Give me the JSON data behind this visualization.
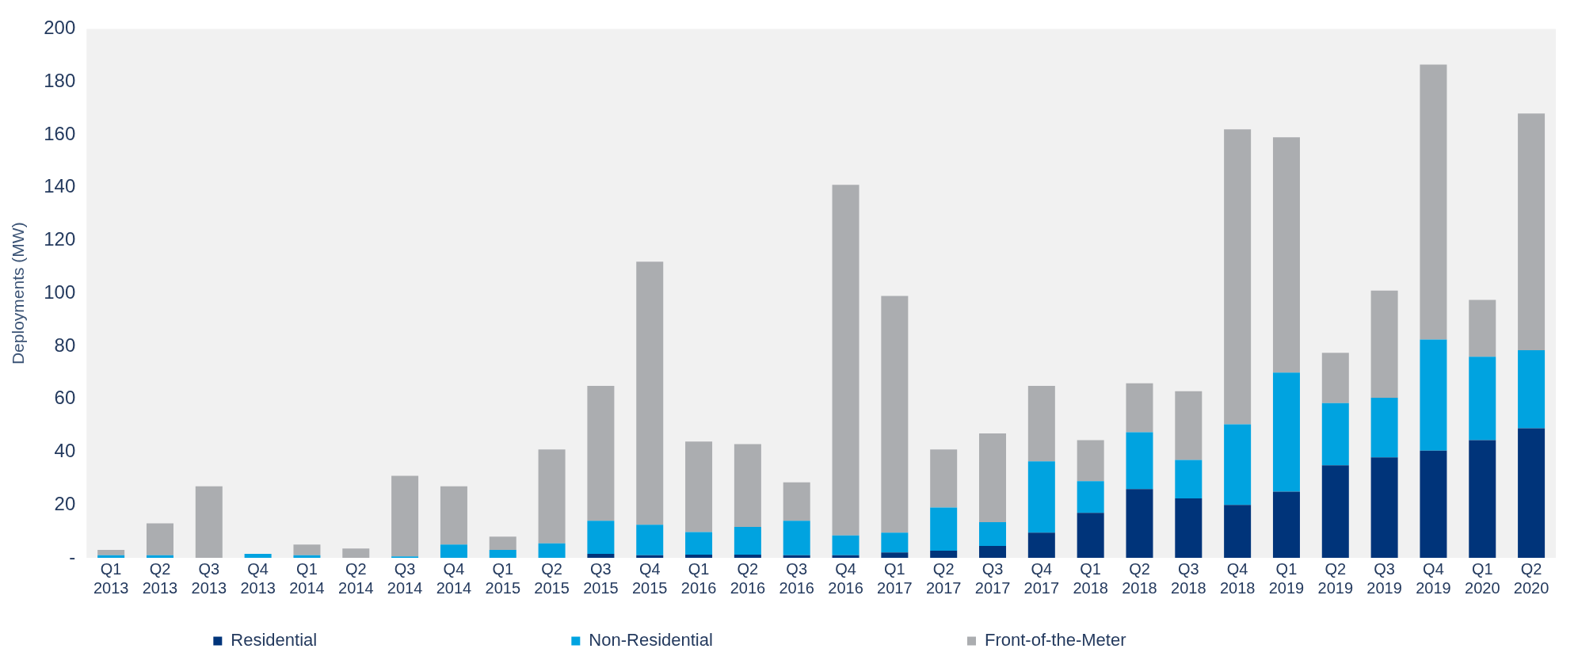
{
  "chart_data": {
    "type": "bar",
    "stacked": true,
    "ylabel": "Deployments (MW)",
    "categories": [
      "Q1 2013",
      "Q2 2013",
      "Q3 2013",
      "Q4 2013",
      "Q1 2014",
      "Q2 2014",
      "Q3 2014",
      "Q4 2014",
      "Q1 2015",
      "Q2 2015",
      "Q3 2015",
      "Q4 2015",
      "Q1 2016",
      "Q2 2016",
      "Q3 2016",
      "Q4 2016",
      "Q1 2017",
      "Q2 2017",
      "Q3 2017",
      "Q4 2017",
      "Q1 2018",
      "Q2 2018",
      "Q3 2018",
      "Q4 2018",
      "Q1 2019",
      "Q2 2019",
      "Q3 2019",
      "Q4 2019",
      "Q1 2020",
      "Q2 2020"
    ],
    "series": [
      {
        "name": "Residential",
        "color": "#00347a",
        "values": [
          0,
          0,
          0,
          0,
          0,
          0,
          0,
          0,
          0,
          0,
          1.5,
          1,
          1.2,
          1.2,
          1,
          1,
          2,
          2.7,
          4.5,
          9.5,
          17,
          26,
          22.5,
          20,
          25,
          35,
          38,
          40.5,
          44.5,
          49
        ]
      },
      {
        "name": "Non-Residential",
        "color": "#00a3e0",
        "values": [
          1,
          1,
          0,
          1.5,
          1,
          0,
          0.5,
          5,
          3,
          5.5,
          12.5,
          11.5,
          8.5,
          10.5,
          13,
          7.5,
          7.5,
          16.3,
          9,
          27,
          12,
          21.5,
          14.5,
          30.5,
          45,
          23.5,
          22.5,
          42,
          31.5,
          29.5
        ]
      },
      {
        "name": "Front-of-the-Meter",
        "color": "#abadb0",
        "values": [
          2,
          12,
          27,
          null,
          4,
          3.5,
          30.5,
          22,
          5,
          35.5,
          51,
          99.5,
          34.3,
          31.3,
          14.5,
          132.5,
          89.5,
          22,
          33.5,
          28.5,
          15.5,
          18.5,
          26,
          111.5,
          89,
          19,
          40.5,
          104,
          21.5,
          89.5
        ]
      }
    ],
    "ylim": [
      0,
      200
    ],
    "yticks": [
      {
        "value": 0,
        "label": "-"
      },
      20,
      40,
      60,
      80,
      100,
      120,
      140,
      160,
      180,
      200
    ],
    "grid": false,
    "legend": "bottom"
  }
}
